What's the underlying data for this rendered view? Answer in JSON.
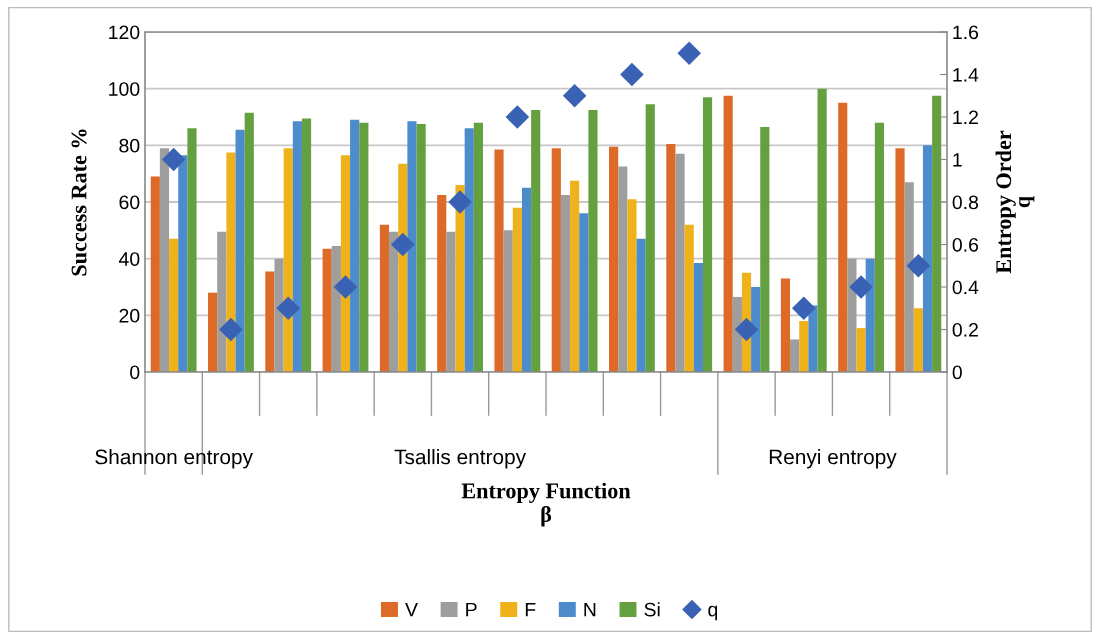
{
  "chart_data": {
    "type": "bar",
    "categories": [
      null,
      null,
      null,
      null,
      null,
      null,
      null,
      null,
      null,
      null,
      null,
      null,
      null,
      null
    ],
    "xlabel": "Entropy Function\nβ",
    "ylabel": "Success Rate %",
    "y2label": "Entropy Order\nq",
    "annotations": [
      "Shannon entropy",
      "Tsallis entropy",
      "Renyi entropy"
    ],
    "series": [
      {
        "name": "V",
        "color": "#dd6a27",
        "values": [
          69,
          28,
          35.5,
          43.5,
          52,
          62.5,
          78.5,
          79,
          79.5,
          80.5,
          97.5,
          33,
          95,
          79
        ]
      },
      {
        "name": "P",
        "color": "#9e9e9e",
        "values": [
          79,
          49.5,
          40,
          44.5,
          49.5,
          49.5,
          50,
          62.5,
          72.5,
          77,
          26.5,
          11.5,
          40,
          67
        ]
      },
      {
        "name": "F",
        "color": "#f0b21a",
        "values": [
          47,
          77.5,
          79,
          76.5,
          73.5,
          66,
          58,
          67.5,
          61,
          52,
          35,
          18,
          15.5,
          22.5
        ]
      },
      {
        "name": "N",
        "color": "#4d8ccc",
        "values": [
          76.5,
          85.5,
          88.5,
          89,
          88.5,
          86,
          65,
          56,
          47,
          38.5,
          30,
          23.5,
          40,
          80
        ]
      },
      {
        "name": "Si",
        "color": "#64a040",
        "values": [
          86,
          91.5,
          89.5,
          88,
          87.5,
          88,
          92.5,
          92.5,
          94.5,
          97,
          86.5,
          100,
          88,
          97.5
        ]
      },
      {
        "name": "q",
        "type": "scatter",
        "axis": "y2",
        "marker": "diamond",
        "color": "#3a62b4",
        "values": [
          1,
          0.2,
          0.3,
          0.4,
          0.6,
          0.8,
          1.2,
          1.3,
          1.4,
          1.5,
          0.2,
          0.3,
          0.4,
          0.5
        ]
      }
    ],
    "ylim": [
      0,
      120
    ],
    "yticks": [
      0,
      20,
      40,
      60,
      80,
      100,
      120
    ],
    "y2lim": [
      0,
      1.6
    ],
    "y2ticks": [
      {
        "value": 0,
        "label": "0"
      },
      {
        "value": 0.2,
        "label": "0.2"
      },
      {
        "value": 0.4,
        "label": "0.4"
      },
      {
        "value": 0.6,
        "label": "0.6"
      },
      {
        "value": 0.8,
        "label": "0.8"
      },
      {
        "value": 1,
        "label": "1"
      },
      {
        "value": 1.2,
        "label": "1.2"
      },
      {
        "value": 1.4,
        "label": "1.4"
      },
      {
        "value": 1.6,
        "label": "1.6"
      }
    ],
    "grid": "y",
    "legend": "bottom"
  }
}
